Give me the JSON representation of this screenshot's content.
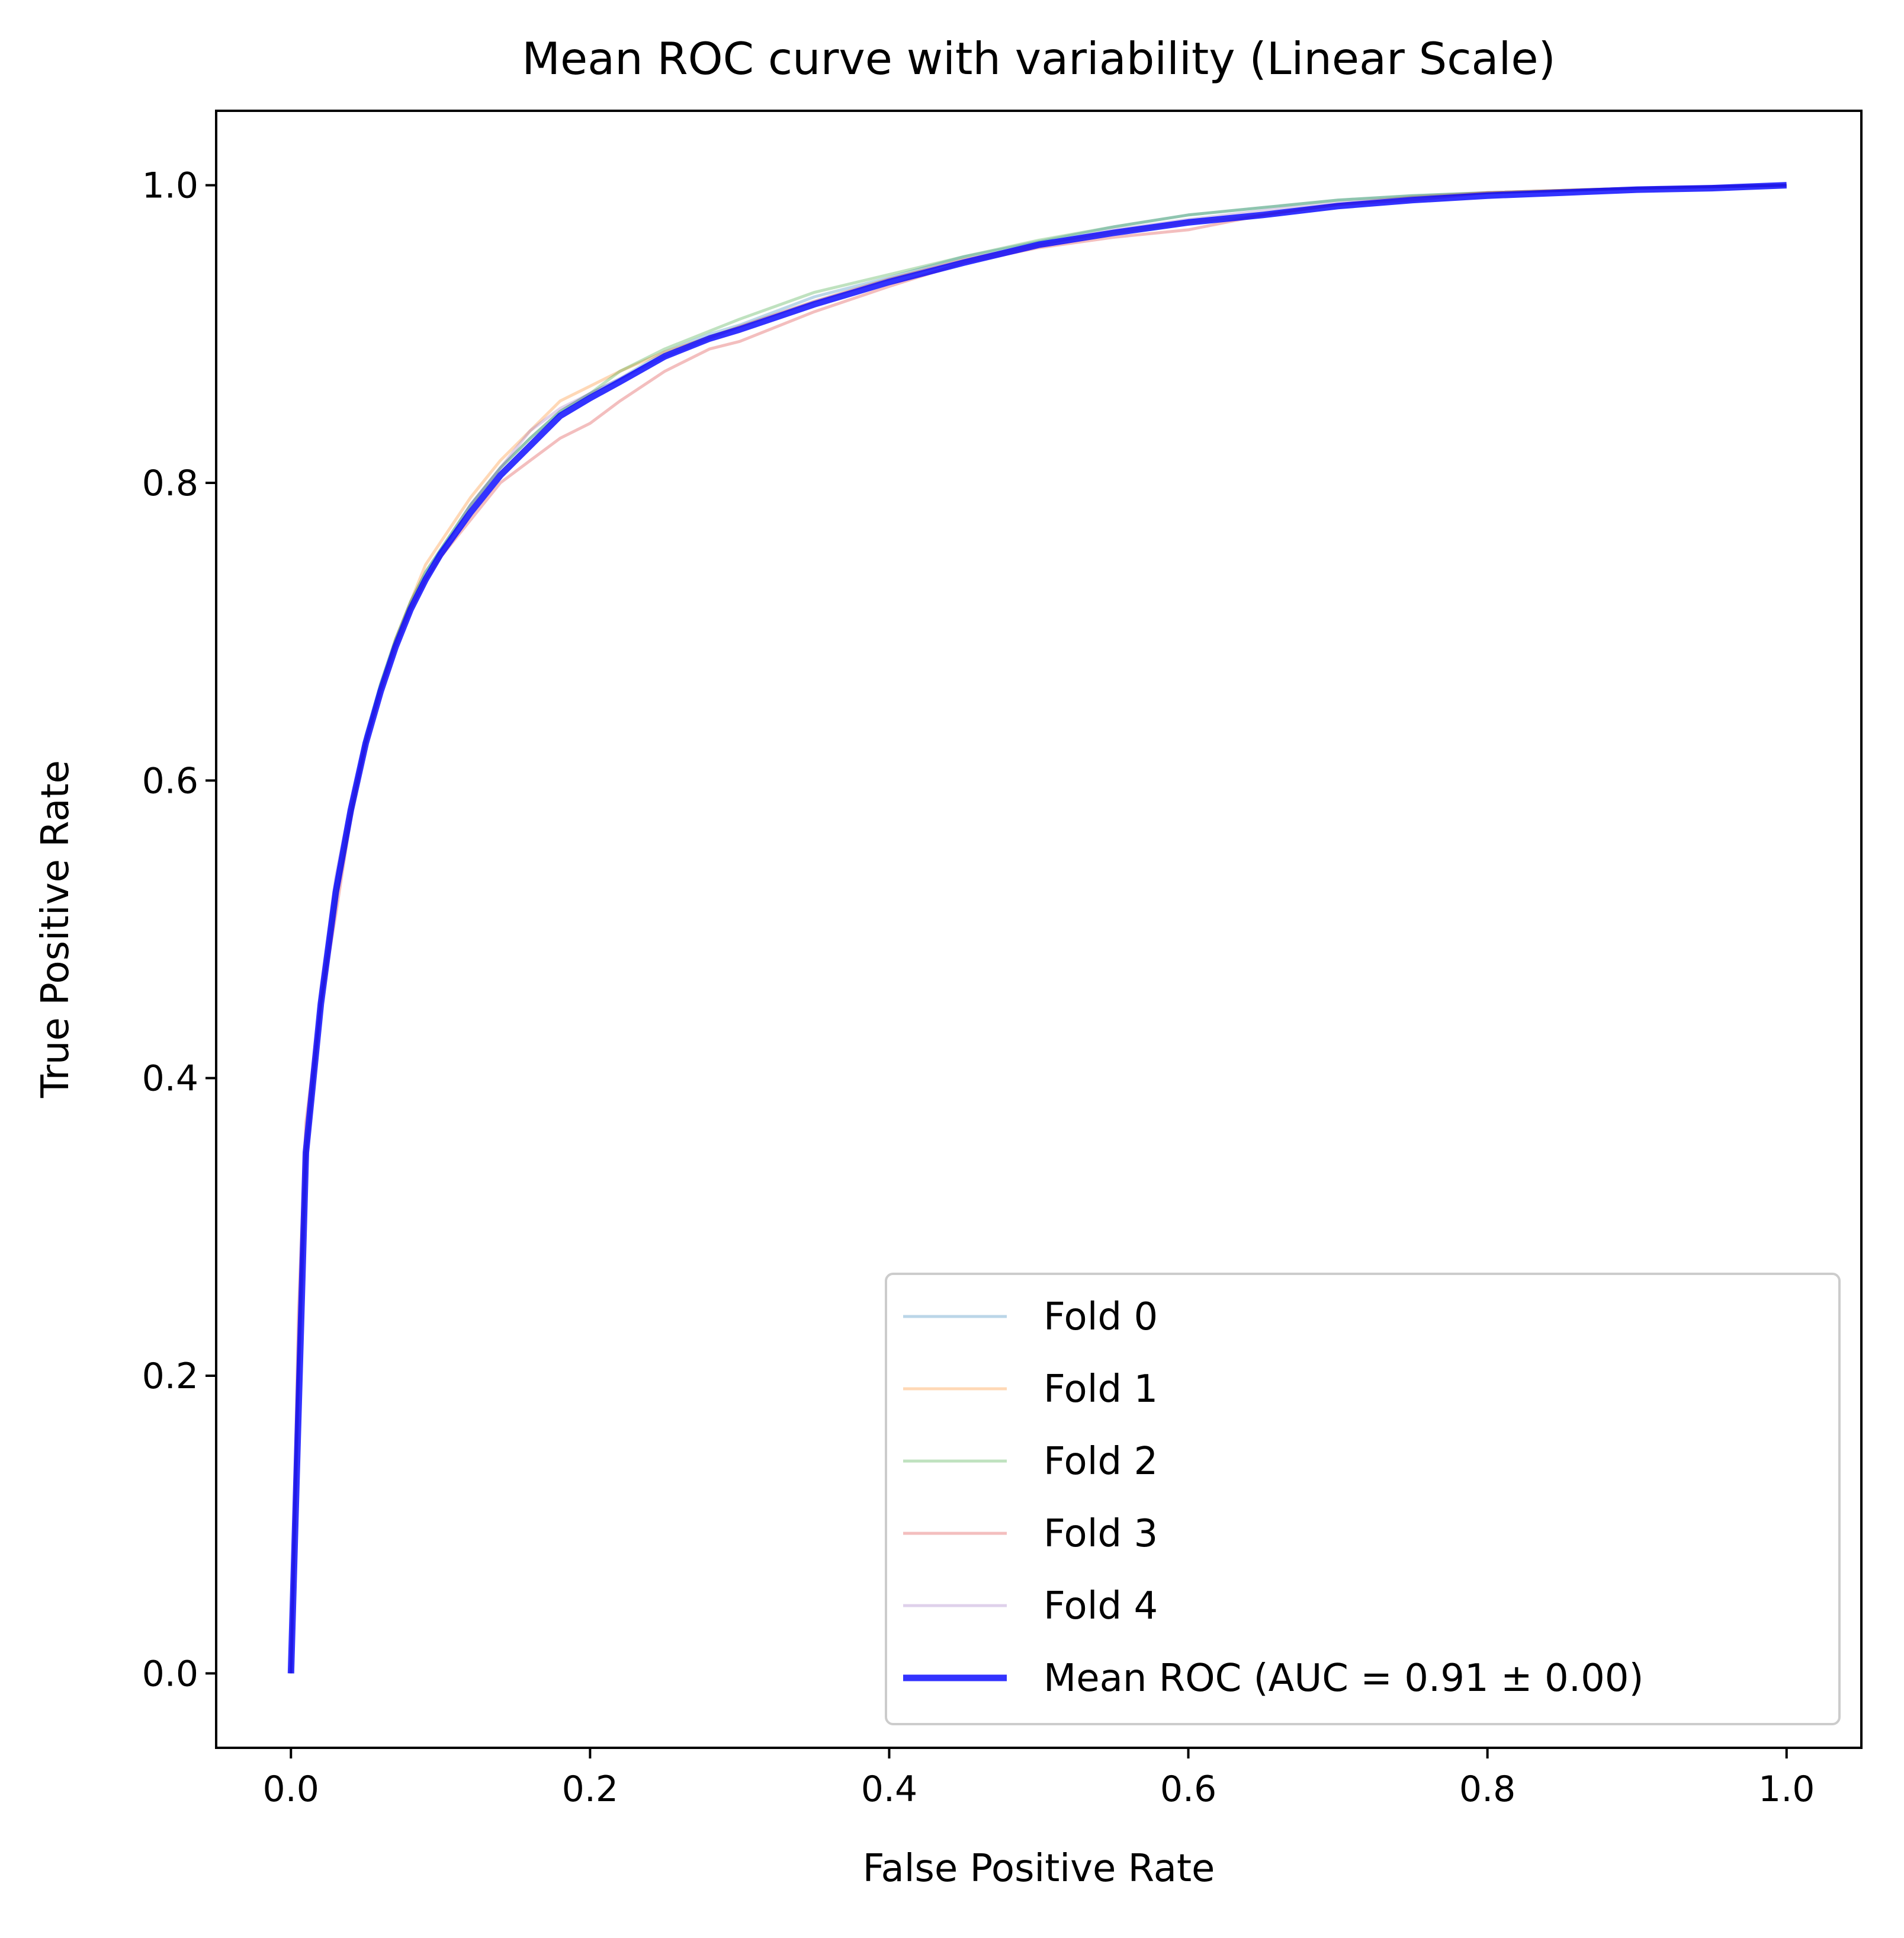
{
  "chart_data": {
    "type": "line",
    "title": "Mean ROC curve with variability (Linear Scale)",
    "xlabel": "False Positive Rate",
    "ylabel": "True Positive Rate",
    "xlim": [
      -0.05,
      1.05
    ],
    "ylim": [
      -0.05,
      1.05
    ],
    "xticks": [
      0.0,
      0.2,
      0.4,
      0.6,
      0.8,
      1.0
    ],
    "xtick_labels": [
      "0.0",
      "0.2",
      "0.4",
      "0.6",
      "0.8",
      "1.0"
    ],
    "yticks": [
      0.0,
      0.2,
      0.4,
      0.6,
      0.8,
      1.0
    ],
    "ytick_labels": [
      "0.0",
      "0.2",
      "0.4",
      "0.6",
      "0.8",
      "1.0"
    ],
    "grid": false,
    "legend_position": "lower-right",
    "series": [
      {
        "name": "Fold 0",
        "color": "#1f77b4",
        "alpha": 0.3,
        "linewidth": "thin",
        "x": [
          0,
          0.005,
          0.01,
          0.02,
          0.03,
          0.04,
          0.05,
          0.06,
          0.07,
          0.08,
          0.09,
          0.1,
          0.12,
          0.14,
          0.16,
          0.18,
          0.2,
          0.22,
          0.25,
          0.28,
          0.3,
          0.35,
          0.4,
          0.45,
          0.5,
          0.55,
          0.6,
          0.65,
          0.7,
          0.75,
          0.8,
          0.9,
          1.0
        ],
        "y": [
          0,
          0.2,
          0.35,
          0.45,
          0.53,
          0.58,
          0.63,
          0.665,
          0.695,
          0.72,
          0.74,
          0.755,
          0.785,
          0.81,
          0.83,
          0.848,
          0.86,
          0.87,
          0.888,
          0.9,
          0.906,
          0.925,
          0.938,
          0.952,
          0.962,
          0.972,
          0.98,
          0.985,
          0.99,
          0.993,
          0.995,
          0.998,
          1.0
        ]
      },
      {
        "name": "Fold 1",
        "color": "#ff7f0e",
        "alpha": 0.3,
        "linewidth": "thin",
        "x": [
          0,
          0.005,
          0.01,
          0.02,
          0.03,
          0.04,
          0.05,
          0.06,
          0.07,
          0.08,
          0.09,
          0.1,
          0.12,
          0.14,
          0.16,
          0.18,
          0.2,
          0.22,
          0.25,
          0.28,
          0.3,
          0.35,
          0.4,
          0.45,
          0.5,
          0.55,
          0.6,
          0.65,
          0.7,
          0.75,
          0.8,
          0.9,
          1.0
        ],
        "y": [
          0,
          0.19,
          0.34,
          0.45,
          0.52,
          0.58,
          0.625,
          0.66,
          0.695,
          0.72,
          0.745,
          0.76,
          0.79,
          0.815,
          0.835,
          0.855,
          0.865,
          0.875,
          0.888,
          0.898,
          0.905,
          0.922,
          0.937,
          0.95,
          0.96,
          0.968,
          0.975,
          0.98,
          0.987,
          0.992,
          0.995,
          0.998,
          1.0
        ]
      },
      {
        "name": "Fold 2",
        "color": "#2ca02c",
        "alpha": 0.3,
        "linewidth": "thin",
        "x": [
          0,
          0.005,
          0.01,
          0.02,
          0.03,
          0.04,
          0.05,
          0.06,
          0.07,
          0.08,
          0.09,
          0.1,
          0.12,
          0.14,
          0.16,
          0.18,
          0.2,
          0.22,
          0.25,
          0.28,
          0.3,
          0.35,
          0.4,
          0.45,
          0.5,
          0.55,
          0.6,
          0.65,
          0.7,
          0.75,
          0.8,
          0.9,
          1.0
        ],
        "y": [
          0,
          0.21,
          0.35,
          0.45,
          0.52,
          0.575,
          0.625,
          0.665,
          0.695,
          0.72,
          0.74,
          0.755,
          0.785,
          0.81,
          0.83,
          0.848,
          0.86,
          0.875,
          0.89,
          0.902,
          0.91,
          0.928,
          0.94,
          0.952,
          0.963,
          0.972,
          0.98,
          0.985,
          0.99,
          0.993,
          0.995,
          0.998,
          1.0
        ]
      },
      {
        "name": "Fold 3",
        "color": "#d62728",
        "alpha": 0.3,
        "linewidth": "thin",
        "x": [
          0,
          0.005,
          0.01,
          0.02,
          0.03,
          0.04,
          0.05,
          0.06,
          0.07,
          0.08,
          0.09,
          0.1,
          0.12,
          0.14,
          0.16,
          0.18,
          0.2,
          0.22,
          0.25,
          0.28,
          0.3,
          0.35,
          0.4,
          0.45,
          0.5,
          0.55,
          0.6,
          0.65,
          0.7,
          0.75,
          0.8,
          0.9,
          1.0
        ],
        "y": [
          0,
          0.24,
          0.37,
          0.45,
          0.51,
          0.575,
          0.625,
          0.66,
          0.69,
          0.715,
          0.735,
          0.75,
          0.775,
          0.8,
          0.815,
          0.83,
          0.84,
          0.855,
          0.875,
          0.89,
          0.895,
          0.915,
          0.932,
          0.948,
          0.958,
          0.965,
          0.97,
          0.98,
          0.987,
          0.99,
          0.995,
          0.998,
          1.0
        ]
      },
      {
        "name": "Fold 4",
        "color": "#9467bd",
        "alpha": 0.3,
        "linewidth": "thin",
        "x": [
          0,
          0.005,
          0.01,
          0.02,
          0.03,
          0.04,
          0.05,
          0.06,
          0.07,
          0.08,
          0.09,
          0.1,
          0.12,
          0.14,
          0.16,
          0.18,
          0.2,
          0.22,
          0.25,
          0.28,
          0.3,
          0.35,
          0.4,
          0.45,
          0.5,
          0.55,
          0.6,
          0.65,
          0.7,
          0.75,
          0.8,
          0.9,
          1.0
        ],
        "y": [
          0,
          0.2,
          0.34,
          0.46,
          0.535,
          0.585,
          0.625,
          0.66,
          0.69,
          0.715,
          0.735,
          0.752,
          0.785,
          0.81,
          0.835,
          0.85,
          0.86,
          0.87,
          0.885,
          0.897,
          0.905,
          0.922,
          0.937,
          0.95,
          0.96,
          0.97,
          0.977,
          0.983,
          0.988,
          0.992,
          0.995,
          0.998,
          1.0
        ]
      },
      {
        "name": "Mean ROC (AUC = 0.91 ± 0.00)",
        "color": "#0000ff",
        "alpha": 0.8,
        "linewidth": "thick",
        "x": [
          0,
          0.01,
          0.02,
          0.03,
          0.04,
          0.05,
          0.06,
          0.07,
          0.08,
          0.09,
          0.1,
          0.12,
          0.14,
          0.16,
          0.18,
          0.2,
          0.22,
          0.25,
          0.28,
          0.3,
          0.35,
          0.4,
          0.45,
          0.5,
          0.55,
          0.6,
          0.65,
          0.7,
          0.75,
          0.8,
          0.85,
          0.9,
          0.95,
          1.0
        ],
        "y": [
          0,
          0.35,
          0.45,
          0.525,
          0.58,
          0.625,
          0.66,
          0.69,
          0.715,
          0.735,
          0.752,
          0.78,
          0.805,
          0.825,
          0.845,
          0.857,
          0.868,
          0.885,
          0.897,
          0.903,
          0.92,
          0.935,
          0.948,
          0.96,
          0.968,
          0.975,
          0.98,
          0.986,
          0.99,
          0.993,
          0.995,
          0.997,
          0.998,
          1.0
        ]
      }
    ]
  }
}
